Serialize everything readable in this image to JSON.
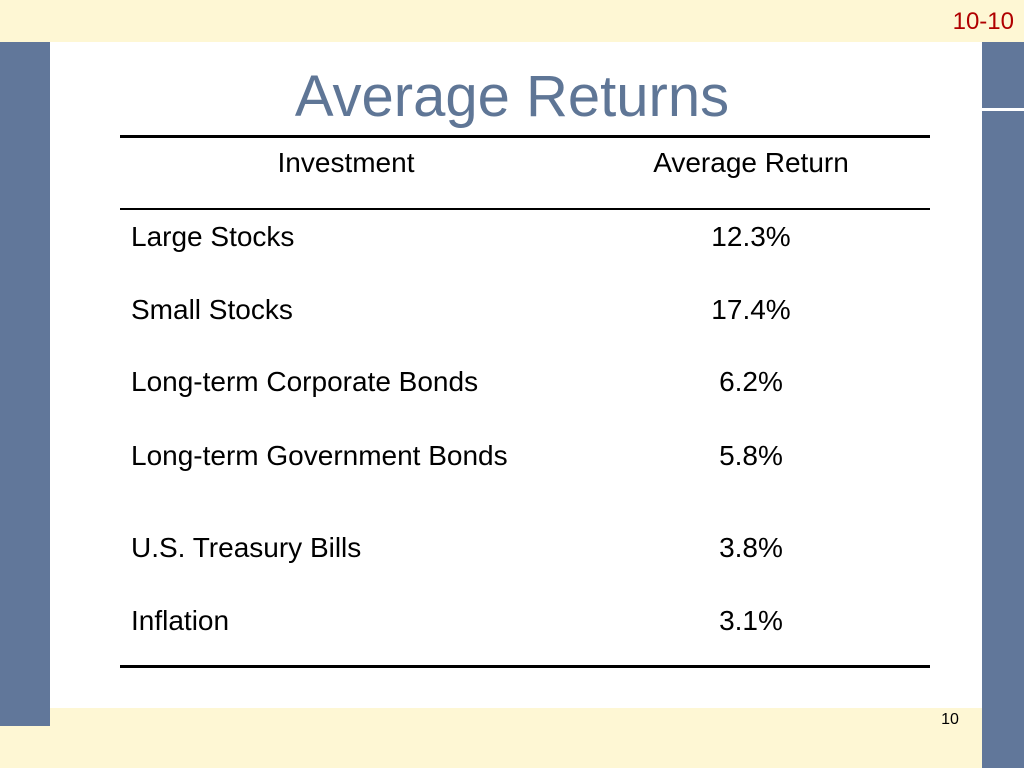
{
  "slide": {
    "code": "10-10",
    "title": "Average Returns",
    "page_number": "10"
  },
  "table": {
    "headers": [
      "Investment",
      "Average Return"
    ],
    "rows": [
      {
        "investment": "Large Stocks",
        "average_return": "12.3%"
      },
      {
        "investment": "Small Stocks",
        "average_return": "17.4%"
      },
      {
        "investment": "Long-term Corporate Bonds",
        "average_return": "6.2%"
      },
      {
        "investment": "Long-term Government Bonds",
        "average_return": "5.8%"
      },
      {
        "investment": "U.S. Treasury Bills",
        "average_return": "3.8%"
      },
      {
        "investment": "Inflation",
        "average_return": "3.1%"
      }
    ]
  },
  "colors": {
    "frame_cream": "#fef7d4",
    "frame_blue": "#61779a",
    "title": "#5f7696",
    "slide_code": "#b00000"
  }
}
